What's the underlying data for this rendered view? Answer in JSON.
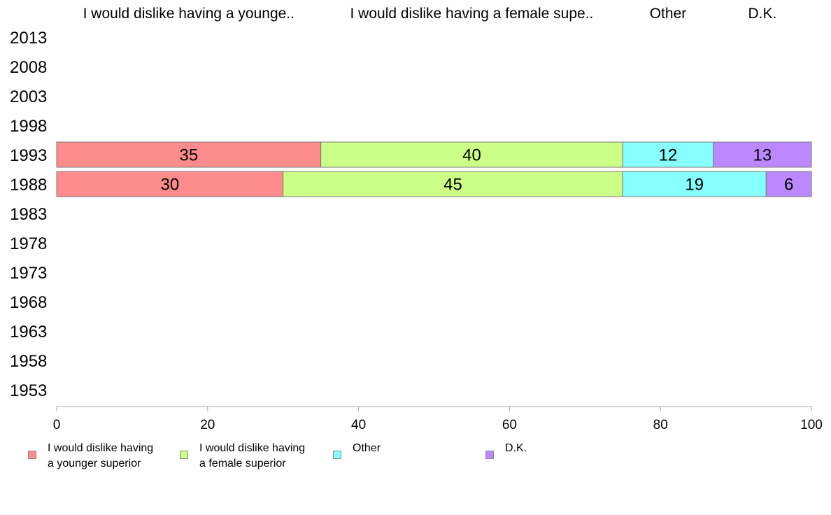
{
  "chart_data": {
    "type": "bar",
    "orientation": "horizontal",
    "stacked": true,
    "categories": [
      "2013",
      "2008",
      "2003",
      "1998",
      "1993",
      "1988",
      "1983",
      "1978",
      "1973",
      "1968",
      "1963",
      "1958",
      "1953"
    ],
    "series": [
      {
        "name": "I would dislike having a younger superior",
        "header": "I would dislike having a younge..",
        "color": "#ff8c8c",
        "values": [
          null,
          null,
          null,
          null,
          35,
          30,
          null,
          null,
          null,
          null,
          null,
          null,
          null
        ]
      },
      {
        "name": "I would dislike having a female superior",
        "header": "I would dislike having a female supe..",
        "color": "#ccff88",
        "values": [
          null,
          null,
          null,
          null,
          40,
          45,
          null,
          null,
          null,
          null,
          null,
          null,
          null
        ]
      },
      {
        "name": "Other",
        "header": "Other",
        "color": "#88ffff",
        "values": [
          null,
          null,
          null,
          null,
          12,
          19,
          null,
          null,
          null,
          null,
          null,
          null,
          null
        ]
      },
      {
        "name": "D.K.",
        "header": "D.K.",
        "color": "#bb88ff",
        "values": [
          null,
          null,
          null,
          null,
          13,
          6,
          null,
          null,
          null,
          null,
          null,
          null,
          null
        ]
      }
    ],
    "xlim": [
      0,
      100
    ],
    "xticks": [
      0,
      20,
      40,
      60,
      80,
      100
    ],
    "grid": false,
    "legend_position": "bottom"
  },
  "legend": {
    "items": [
      {
        "label": "I would dislike having\na younger superior",
        "color": "#ff8c8c"
      },
      {
        "label": "I would dislike having\na female superior",
        "color": "#ccff88"
      },
      {
        "label": "Other",
        "color": "#88ffff"
      },
      {
        "label": "D.K.",
        "color": "#bb88ff"
      }
    ]
  }
}
